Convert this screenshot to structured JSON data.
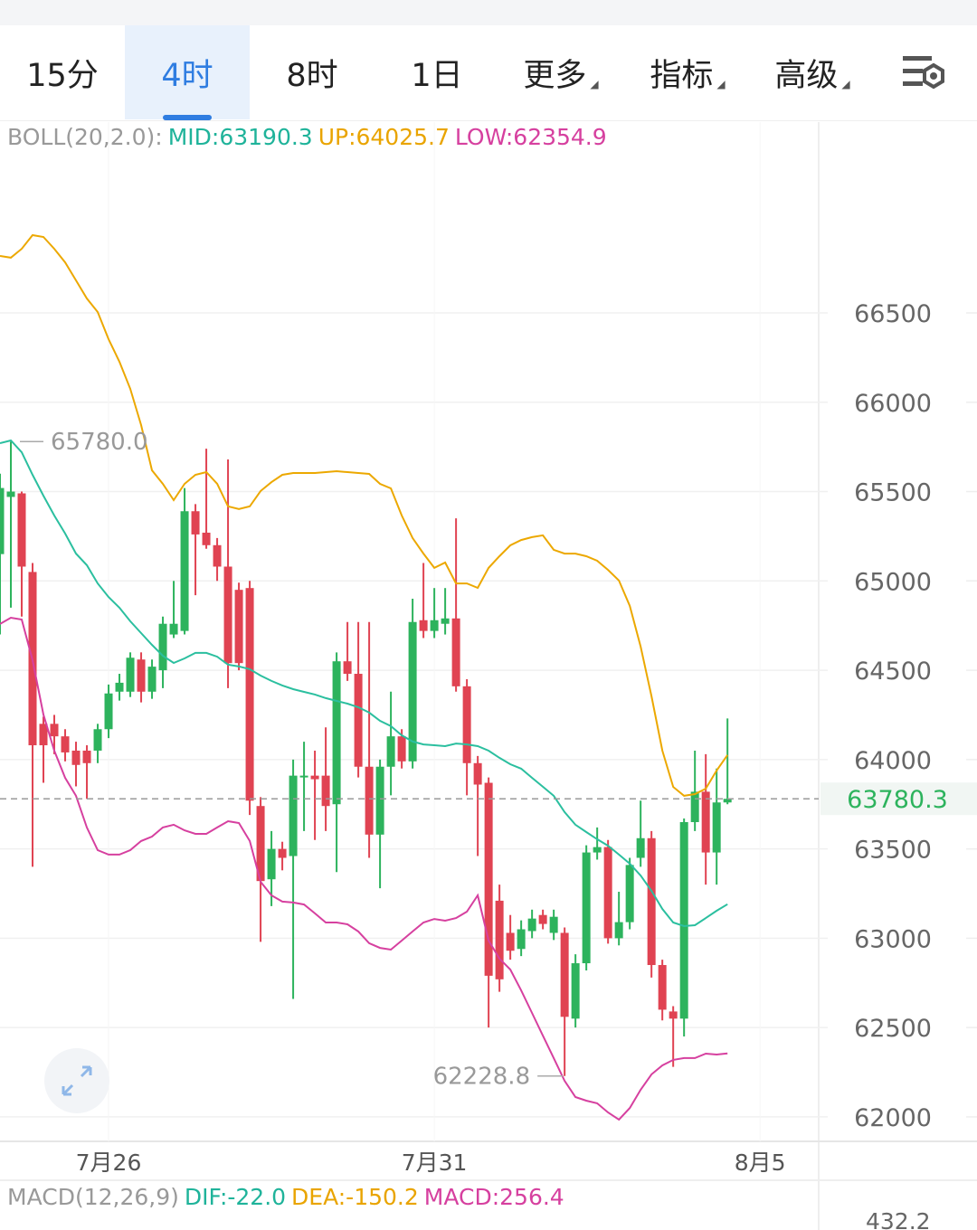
{
  "tabs": [
    "15分",
    "4时",
    "8时",
    "1日",
    "更多",
    "指标",
    "高级"
  ],
  "selected_tab": 1,
  "boll": {
    "label": "BOLL(20,2.0):",
    "mid": "MID:63190.3",
    "up": "UP:64025.7",
    "low": "LOW:62354.9"
  },
  "macd": {
    "label": "MACD(12,26,9)",
    "dif": "DIF:-22.0",
    "dea": "DEA:-150.2",
    "macd": "MACD:256.4",
    "axis_label": "432.2"
  },
  "chart_data": {
    "type": "candlestick",
    "x": [
      0,
      1,
      2,
      3,
      4,
      5,
      6,
      7,
      8,
      9,
      10,
      11,
      12,
      13,
      14,
      15,
      16,
      17,
      18,
      19,
      20,
      21,
      22,
      23,
      24,
      25,
      26,
      27,
      28,
      29,
      30,
      31,
      32,
      33,
      34,
      35,
      36,
      37,
      38,
      39,
      40,
      41,
      42,
      43,
      44,
      45,
      46,
      47,
      48,
      49,
      50,
      51,
      52,
      53,
      54,
      55,
      56,
      57,
      58,
      59,
      60,
      61,
      62,
      63,
      64,
      65,
      66,
      67
    ],
    "xlim": [
      0,
      75.4
    ],
    "xticks": [
      {
        "value": 10,
        "label": "7月26"
      },
      {
        "value": 40,
        "label": "7月31"
      },
      {
        "value": 70,
        "label": "8月5"
      }
    ],
    "ylim": [
      61863,
      67568
    ],
    "yticks": [
      62000,
      62500,
      63000,
      63500,
      64000,
      64500,
      65000,
      65500,
      66000,
      66500
    ],
    "up_color": "#2db35d",
    "down_color": "#e04352",
    "open": [
      65150,
      65470,
      65490,
      65050,
      64200,
      64200,
      64130,
      64050,
      64050,
      64050,
      64170,
      64380,
      64380,
      64560,
      64380,
      64500,
      64700,
      64720,
      65390,
      65270,
      65200,
      65080,
      64950,
      64960,
      63740,
      63330,
      63500,
      63460,
      63900,
      63910,
      63910,
      63750,
      64550,
      64480,
      63960,
      63580,
      63960,
      64130,
      63990,
      64780,
      64720,
      64760,
      64790,
      64410,
      63980,
      63870,
      63210,
      63030,
      62940,
      63040,
      63130,
      63030,
      63030,
      62550,
      62860,
      63480,
      63510,
      63000,
      63090,
      63450,
      63560,
      62850,
      62590,
      62550,
      63650,
      63820,
      63480,
      63760
    ],
    "high": [
      65600,
      65780,
      65500,
      65100,
      64240,
      64250,
      64170,
      64100,
      64080,
      64200,
      64420,
      64480,
      64600,
      64600,
      64560,
      64800,
      65000,
      65520,
      65430,
      65740,
      65240,
      65680,
      64990,
      65000,
      63790,
      63600,
      63540,
      64000,
      64100,
      64050,
      64180,
      64600,
      64770,
      64770,
      64770,
      64000,
      64380,
      64170,
      64900,
      65100,
      64960,
      64960,
      65350,
      64450,
      64020,
      63900,
      63300,
      63130,
      63100,
      63160,
      63160,
      63160,
      63060,
      62910,
      63520,
      63620,
      63550,
      63260,
      63450,
      63770,
      63600,
      62880,
      62620,
      63670,
      64050,
      64030,
      63950,
      64230
    ],
    "low": [
      64700,
      64850,
      64800,
      63400,
      63870,
      64030,
      63990,
      63850,
      63780,
      63980,
      64120,
      64330,
      64350,
      64320,
      64340,
      64400,
      64680,
      64700,
      64920,
      65180,
      65000,
      64400,
      64500,
      63690,
      62980,
      63180,
      63380,
      62660,
      63600,
      63550,
      63600,
      63370,
      64440,
      63900,
      63450,
      63280,
      63800,
      63950,
      63950,
      64680,
      64680,
      64700,
      64380,
      63800,
      63460,
      62500,
      62700,
      62880,
      62900,
      63000,
      63050,
      62990,
      62228.8,
      62500,
      62820,
      63440,
      62970,
      62960,
      63050,
      63400,
      62780,
      62540,
      62280,
      62450,
      63600,
      63300,
      63300,
      63750
    ],
    "close": [
      65520,
      65500,
      65080,
      64080,
      64080,
      64130,
      64040,
      63970,
      63980,
      64170,
      64370,
      64430,
      64570,
      64380,
      64520,
      64760,
      64760,
      65390,
      65260,
      65200,
      65080,
      64540,
      64540,
      63770,
      63320,
      63500,
      63450,
      63910,
      63910,
      63890,
      63740,
      64550,
      64480,
      63960,
      63580,
      63960,
      64130,
      63990,
      64770,
      64720,
      64780,
      64790,
      64410,
      63980,
      63860,
      62790,
      62770,
      62930,
      63050,
      63110,
      63080,
      63120,
      62560,
      62860,
      63480,
      63510,
      63000,
      63090,
      63410,
      63560,
      62850,
      62600,
      62550,
      63650,
      63820,
      63480,
      63760,
      63780.3
    ],
    "series": [
      {
        "name": "MID",
        "color": "#2bbf9f",
        "values": [
          65771,
          65786,
          65720,
          65594,
          65477,
          65366,
          65265,
          65153,
          65088,
          64986,
          64910,
          64850,
          64774,
          64708,
          64642,
          64581,
          64541,
          64566,
          64597,
          64597,
          64576,
          64531,
          64521,
          64506,
          64470,
          64440,
          64415,
          64394,
          64379,
          64364,
          64344,
          64328,
          64313,
          64293,
          64263,
          64217,
          64187,
          64136,
          64101,
          64085,
          64080,
          64075,
          64090,
          64085,
          64075,
          64050,
          64010,
          63974,
          63949,
          63898,
          63848,
          63797,
          63706,
          63635,
          63594,
          63554,
          63518,
          63468,
          63417,
          63351,
          63265,
          63164,
          63088,
          63068,
          63073,
          63113,
          63154,
          63190.3
        ]
      },
      {
        "name": "UP",
        "color": "#eca800",
        "values": [
          66819,
          66809,
          66859,
          66935,
          66925,
          66859,
          66783,
          66682,
          66581,
          66505,
          66353,
          66227,
          66075,
          65872,
          65619,
          65543,
          65452,
          65543,
          65594,
          65609,
          65543,
          65417,
          65402,
          65417,
          65503,
          65553,
          65594,
          65604,
          65604,
          65604,
          65609,
          65614,
          65609,
          65604,
          65599,
          65543,
          65518,
          65366,
          65240,
          65153,
          65073,
          65103,
          64986,
          64986,
          64961,
          65073,
          65138,
          65199,
          65229,
          65245,
          65255,
          65174,
          65153,
          65153,
          65138,
          65113,
          65062,
          65002,
          64860,
          64632,
          64354,
          64050,
          63847,
          63797,
          63807,
          63837,
          63939,
          64025.7
        ]
      },
      {
        "name": "LOW",
        "color": "#d6409f",
        "values": [
          64759,
          64794,
          64784,
          64556,
          64252,
          64050,
          63898,
          63797,
          63620,
          63493,
          63468,
          63468,
          63493,
          63544,
          63569,
          63620,
          63635,
          63604,
          63584,
          63584,
          63620,
          63655,
          63645,
          63544,
          63316,
          63240,
          63205,
          63200,
          63189,
          63139,
          63088,
          63088,
          63078,
          63038,
          62972,
          62946,
          62936,
          62987,
          63038,
          63088,
          63108,
          63098,
          63113,
          63149,
          63240,
          62987,
          62886,
          62825,
          62708,
          62582,
          62455,
          62329,
          62202,
          62111,
          62091,
          62076,
          62025,
          61985,
          62050,
          62152,
          62238,
          62288,
          62319,
          62329,
          62329,
          62354,
          62349,
          62354.9
        ]
      }
    ],
    "last_price": 63780.3,
    "annotations": [
      {
        "x": 1,
        "value": 65780.0,
        "label": "65780.0"
      },
      {
        "x": 52,
        "value": 62228.8,
        "label": "62228.8"
      }
    ],
    "grid": true
  }
}
